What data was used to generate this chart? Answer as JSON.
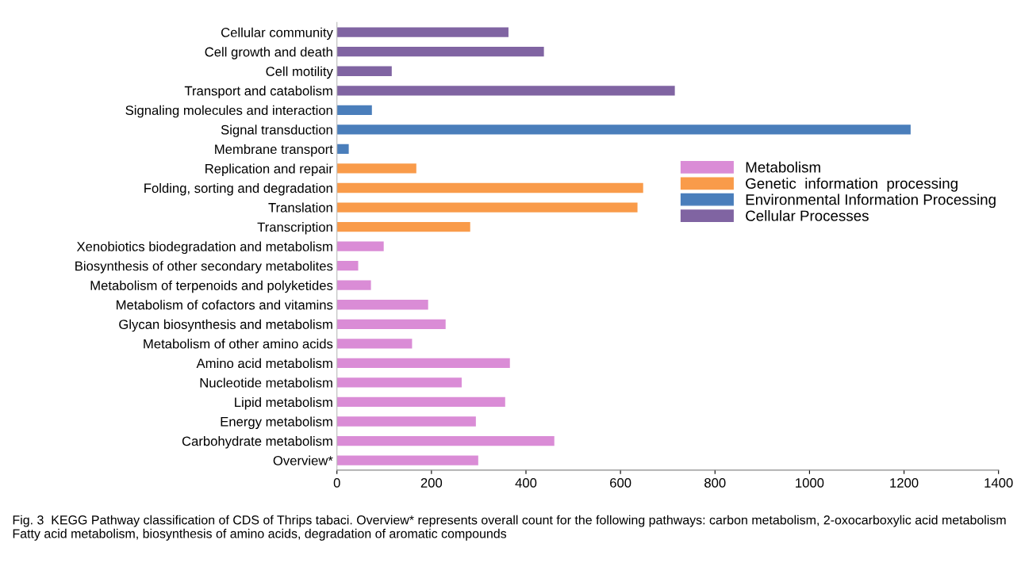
{
  "chart_data": {
    "type": "bar",
    "orientation": "horizontal",
    "categories": [
      "Cellular community",
      "Cell growth and death",
      "Cell motility",
      "Transport and catabolism",
      "Signaling molecules and interaction",
      "Signal transduction",
      "Membrane transport",
      "Replication and repair",
      "Folding, sorting and degradation",
      "Translation",
      "Transcription",
      "Xenobiotics biodegradation and metabolism",
      "Biosynthesis of other secondary metabolites",
      "Metabolism of terpenoids and polyketides",
      "Metabolism of cofactors and vitamins",
      "Glycan biosynthesis and metabolism",
      "Metabolism of other amino acids",
      "Amino acid metabolism",
      "Nucleotide metabolism",
      "Lipid metabolism",
      "Energy metabolism",
      "Carbohydrate metabolism",
      "Overview*"
    ],
    "series": [
      {
        "name": "Metabolism",
        "color": "#da8cd6",
        "values": [
          null,
          null,
          null,
          null,
          null,
          null,
          null,
          null,
          null,
          null,
          null,
          99,
          45,
          72,
          193,
          230,
          159,
          366,
          264,
          356,
          294,
          460,
          299
        ]
      },
      {
        "name": "Genetic  information  processing",
        "color": "#f99b4a",
        "values": [
          null,
          null,
          null,
          null,
          null,
          null,
          null,
          168,
          648,
          636,
          282,
          null,
          null,
          null,
          null,
          null,
          null,
          null,
          null,
          null,
          null,
          null,
          null
        ]
      },
      {
        "name": "Environmental Information Processing",
        "color": "#4a7ebb",
        "values": [
          null,
          null,
          null,
          null,
          74,
          1214,
          25,
          null,
          null,
          null,
          null,
          null,
          null,
          null,
          null,
          null,
          null,
          null,
          null,
          null,
          null,
          null,
          null
        ]
      },
      {
        "name": "Cellular Processes",
        "color": "#8064a2",
        "values": [
          363,
          438,
          116,
          715,
          null,
          null,
          null,
          null,
          null,
          null,
          null,
          null,
          null,
          null,
          null,
          null,
          null,
          null,
          null,
          null,
          null,
          null,
          null
        ]
      }
    ],
    "xlim": [
      0,
      1400
    ],
    "xticks": [
      0,
      200,
      400,
      600,
      800,
      1000,
      1200,
      1400
    ],
    "grid": false,
    "legend": "right",
    "annotations": [
      "Fig. 3  KEGG Pathway classification of CDS of Thrips tabaci. Overview* represents overall count for the following pathways: carbon metabolism, 2-oxocarboxylic acid metabolism Fatty acid metabolism, biosynthesis of amino acids, degradation of aromatic compounds"
    ]
  }
}
